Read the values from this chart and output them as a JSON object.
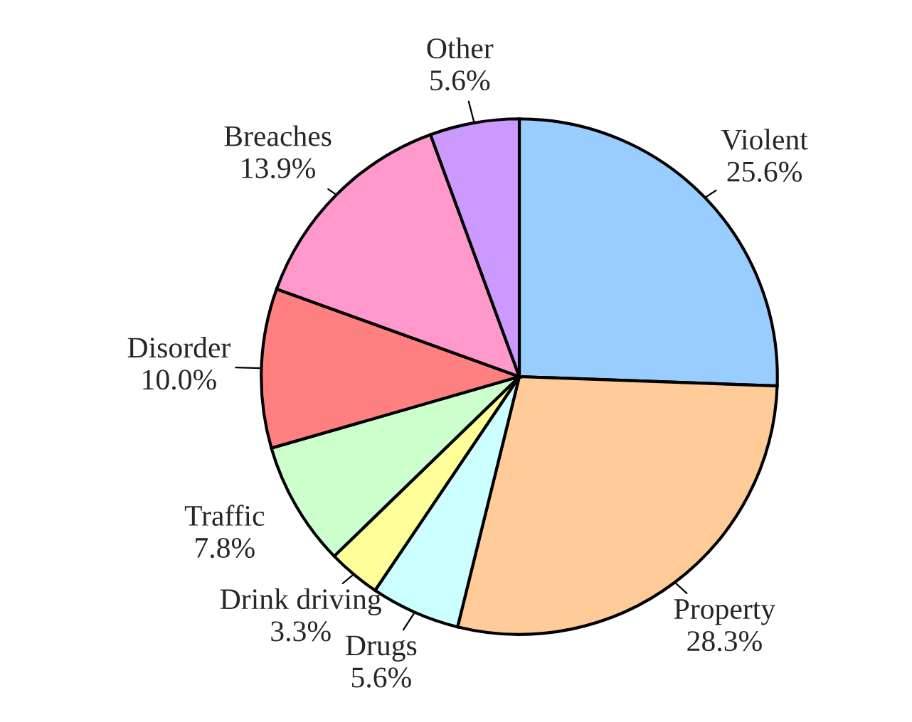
{
  "chart_data": {
    "type": "pie",
    "categories": [
      "Violent",
      "Property",
      "Drugs",
      "Drink driving",
      "Traffic",
      "Disorder",
      "Breaches",
      "Other"
    ],
    "values": [
      25.6,
      28.3,
      5.6,
      3.3,
      7.8,
      10.0,
      13.9,
      5.6
    ],
    "value_labels": [
      "25.6%",
      "28.3%",
      "5.6%",
      "3.3%",
      "7.8%",
      "10.0%",
      "13.9%",
      "5.6%"
    ],
    "colors": [
      "#99ccff",
      "#ffcc99",
      "#ccffff",
      "#ffff99",
      "#ccffcc",
      "#ff8080",
      "#ff99cc",
      "#cc99ff"
    ],
    "legend": false
  }
}
